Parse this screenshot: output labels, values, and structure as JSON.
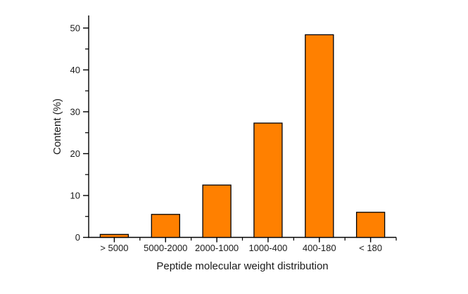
{
  "figure": {
    "background": "#ffffff"
  },
  "chart_data": {
    "type": "bar",
    "title": "",
    "categories": [
      "> 5000",
      "5000-2000",
      "2000-1000",
      "1000-400",
      "400-180",
      "< 180"
    ],
    "values": [
      0.7,
      5.5,
      12.5,
      27.3,
      48.4,
      6.0
    ],
    "xlabel": "Peptide molecular weight distribution",
    "ylabel": "Content (%)",
    "ylim": [
      0,
      53
    ],
    "yticks": [
      0,
      10,
      20,
      30,
      40,
      50
    ],
    "y_minor_ticks": [
      5,
      15,
      25,
      35,
      45
    ],
    "grid": false,
    "legend": "none",
    "bar_color": "#FF8000",
    "bar_edge_color": "#000000",
    "axis_color": "#000000",
    "text_color": "#1a1a1a"
  }
}
